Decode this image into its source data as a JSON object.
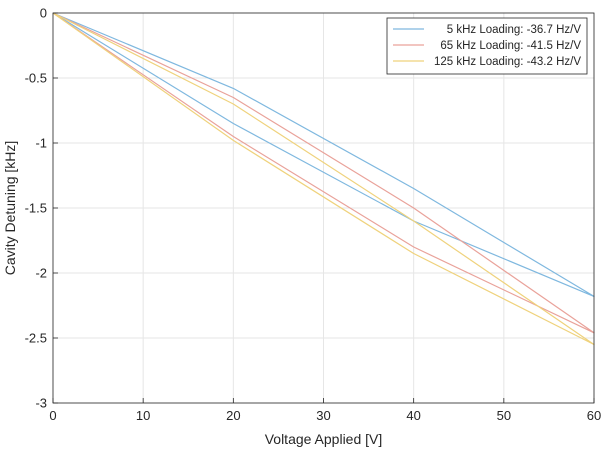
{
  "chart_data": {
    "type": "line",
    "title": "",
    "xlabel": "Voltage Applied [V]",
    "ylabel": "Cavity Detuning [kHz]",
    "xlim": [
      0,
      60
    ],
    "ylim": [
      -3,
      0
    ],
    "xticks": [
      0,
      10,
      20,
      30,
      40,
      50,
      60
    ],
    "yticks": [
      0,
      -0.5,
      -1,
      -1.5,
      -2,
      -2.5,
      -3
    ],
    "xtick_labels": [
      "0",
      "10",
      "20",
      "30",
      "40",
      "50",
      "60"
    ],
    "ytick_labels": [
      "0",
      "-0.5",
      "-1",
      "-1.5",
      "-2",
      "-2.5",
      "-3"
    ],
    "grid": true,
    "legend_position": "top-right",
    "series": [
      {
        "name": "5 kHz Loading: -36.7 Hz/V",
        "color": "#7fb8df",
        "x": [
          0,
          20,
          40,
          60,
          40,
          20,
          0
        ],
        "y": [
          0,
          -0.58,
          -1.35,
          -2.18,
          -1.6,
          -0.85,
          0
        ]
      },
      {
        "name": "65 kHz Loading: -41.5 Hz/V",
        "color": "#e9a29a",
        "x": [
          0,
          20,
          40,
          60,
          40,
          20,
          0
        ],
        "y": [
          0,
          -0.65,
          -1.5,
          -2.46,
          -1.8,
          -0.95,
          0
        ]
      },
      {
        "name": "125 kHz Loading: -43.2 Hz/V",
        "color": "#efd27c",
        "x": [
          0,
          20,
          40,
          60,
          40,
          20,
          0
        ],
        "y": [
          0,
          -0.7,
          -1.6,
          -2.55,
          -1.85,
          -0.98,
          0
        ]
      }
    ]
  }
}
